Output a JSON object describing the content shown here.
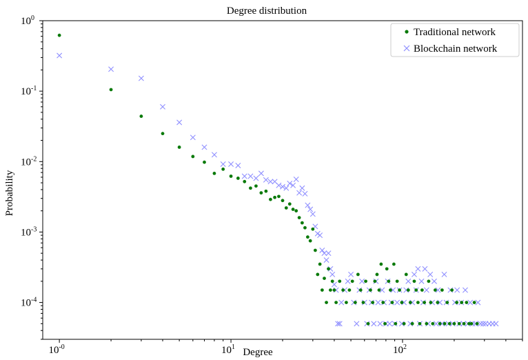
{
  "chart_data": {
    "type": "scatter",
    "title": "Degree distribution",
    "xlabel": "Degree",
    "ylabel": "Probability",
    "xscale": "log",
    "yscale": "log",
    "xlim": [
      0.8,
      500
    ],
    "ylim": [
      3e-05,
      1.0
    ],
    "grid": false,
    "legend_position": "top-right",
    "x_ticks": [
      {
        "value": 1,
        "base": "10",
        "exp": "-0"
      },
      {
        "value": 10,
        "base": "10",
        "exp": "1"
      },
      {
        "value": 100,
        "base": "10",
        "exp": "2"
      }
    ],
    "y_ticks": [
      {
        "value": 1,
        "base": "10",
        "exp": "0"
      },
      {
        "value": 0.1,
        "base": "10",
        "exp": "-1"
      },
      {
        "value": 0.01,
        "base": "10",
        "exp": "-2"
      },
      {
        "value": 0.001,
        "base": "10",
        "exp": "-3"
      },
      {
        "value": 0.0001,
        "base": "10",
        "exp": "-4"
      }
    ],
    "series": [
      {
        "name": "Traditional network",
        "marker": "dot",
        "color": "#0a7a0a",
        "points": [
          [
            1,
            0.62
          ],
          [
            2,
            0.105
          ],
          [
            3,
            0.044
          ],
          [
            4,
            0.025
          ],
          [
            5,
            0.016
          ],
          [
            6,
            0.0118
          ],
          [
            7,
            0.0098
          ],
          [
            8,
            0.0068
          ],
          [
            9,
            0.0078
          ],
          [
            10,
            0.0062
          ],
          [
            11,
            0.0058
          ],
          [
            12,
            0.0052
          ],
          [
            13,
            0.0042
          ],
          [
            14,
            0.0045
          ],
          [
            15,
            0.0036
          ],
          [
            16,
            0.0038
          ],
          [
            17,
            0.0029
          ],
          [
            18,
            0.0031
          ],
          [
            19,
            0.0032
          ],
          [
            20,
            0.0028
          ],
          [
            21,
            0.0022
          ],
          [
            22,
            0.0025
          ],
          [
            23,
            0.0021
          ],
          [
            24,
            0.002
          ],
          [
            25,
            0.0016
          ],
          [
            26,
            0.00135
          ],
          [
            27,
            0.00115
          ],
          [
            28,
            0.00085
          ],
          [
            29,
            0.00075
          ],
          [
            30,
            0.0011
          ],
          [
            31,
            0.00055
          ],
          [
            32,
            0.00025
          ],
          [
            33,
            0.00035
          ],
          [
            34,
            0.00015
          ],
          [
            35,
            0.00022
          ],
          [
            36,
            0.0001
          ],
          [
            37,
            0.0003
          ],
          [
            38,
            0.00015
          ],
          [
            39,
            0.0002
          ],
          [
            40,
            0.00015
          ],
          [
            41,
            0.0001
          ],
          [
            43,
            0.0002
          ],
          [
            45,
            0.00015
          ],
          [
            47,
            0.0001
          ],
          [
            49,
            0.00015
          ],
          [
            51,
            0.0002
          ],
          [
            53,
            0.0001
          ],
          [
            55,
            0.00025
          ],
          [
            57,
            0.00015
          ],
          [
            59,
            0.0001
          ],
          [
            61,
            0.0002
          ],
          [
            63,
            5e-05
          ],
          [
            65,
            0.00015
          ],
          [
            67,
            0.0001
          ],
          [
            69,
            0.0002
          ],
          [
            71,
            0.00025
          ],
          [
            73,
            0.00015
          ],
          [
            75,
            0.00035
          ],
          [
            77,
            0.0001
          ],
          [
            79,
            5e-05
          ],
          [
            81,
            0.0003
          ],
          [
            83,
            0.0002
          ],
          [
            85,
            0.00015
          ],
          [
            87,
            0.0001
          ],
          [
            89,
            0.00035
          ],
          [
            91,
            5e-05
          ],
          [
            93,
            0.0002
          ],
          [
            96,
            0.00015
          ],
          [
            99,
            0.0001
          ],
          [
            102,
            5e-05
          ],
          [
            105,
            0.00025
          ],
          [
            108,
            0.00015
          ],
          [
            111,
            0.0001
          ],
          [
            114,
            5e-05
          ],
          [
            117,
            0.0002
          ],
          [
            120,
            0.00015
          ],
          [
            123,
            0.0001
          ],
          [
            126,
            5e-05
          ],
          [
            130,
            0.00015
          ],
          [
            134,
            0.0001
          ],
          [
            138,
            5e-05
          ],
          [
            142,
            0.0002
          ],
          [
            146,
            0.0001
          ],
          [
            150,
            5e-05
          ],
          [
            155,
            0.00015
          ],
          [
            160,
            0.0001
          ],
          [
            165,
            5e-05
          ],
          [
            170,
            0.00015
          ],
          [
            176,
            5e-05
          ],
          [
            182,
            0.0001
          ],
          [
            188,
            5e-05
          ],
          [
            194,
            0.00015
          ],
          [
            200,
            5e-05
          ],
          [
            207,
            0.0001
          ],
          [
            214,
            5e-05
          ],
          [
            221,
            0.0001
          ],
          [
            228,
            5e-05
          ],
          [
            236,
            0.0001
          ],
          [
            244,
            5e-05
          ],
          [
            252,
            5e-05
          ],
          [
            262,
            0.0001
          ],
          [
            272,
            5e-05
          ]
        ]
      },
      {
        "name": "Blockchain network",
        "marker": "x",
        "color": "#8f8fff",
        "points": [
          [
            1,
            0.32
          ],
          [
            2,
            0.205
          ],
          [
            3,
            0.152
          ],
          [
            4,
            0.06
          ],
          [
            5,
            0.036
          ],
          [
            6,
            0.022
          ],
          [
            7,
            0.016
          ],
          [
            8,
            0.0125
          ],
          [
            9,
            0.0092
          ],
          [
            10,
            0.0092
          ],
          [
            11,
            0.0088
          ],
          [
            12,
            0.0062
          ],
          [
            13,
            0.0062
          ],
          [
            14,
            0.0058
          ],
          [
            15,
            0.0068
          ],
          [
            16,
            0.0055
          ],
          [
            17,
            0.0052
          ],
          [
            18,
            0.0052
          ],
          [
            19,
            0.0046
          ],
          [
            20,
            0.0044
          ],
          [
            21,
            0.0042
          ],
          [
            22,
            0.0049
          ],
          [
            23,
            0.0046
          ],
          [
            24,
            0.0056
          ],
          [
            25,
            0.0036
          ],
          [
            26,
            0.0042
          ],
          [
            27,
            0.0035
          ],
          [
            28,
            0.0024
          ],
          [
            29,
            0.0021
          ],
          [
            30,
            0.0018
          ],
          [
            31,
            0.0012
          ],
          [
            32,
            0.00095
          ],
          [
            33,
            0.0009
          ],
          [
            34,
            0.00055
          ],
          [
            35,
            0.0005
          ],
          [
            36,
            0.0004
          ],
          [
            37,
            0.0005
          ],
          [
            38,
            0.0003
          ],
          [
            39,
            0.00025
          ],
          [
            40,
            0.00018
          ],
          [
            41,
            0.00015
          ],
          [
            42,
            5e-05
          ],
          [
            43,
            5e-05
          ],
          [
            44,
            0.0001
          ],
          [
            46,
            0.00015
          ],
          [
            48,
            0.0002
          ],
          [
            50,
            0.00025
          ],
          [
            52,
            0.0001
          ],
          [
            54,
            5e-05
          ],
          [
            56,
            0.00015
          ],
          [
            58,
            0.0002
          ],
          [
            60,
            0.0001
          ],
          [
            62,
            5e-05
          ],
          [
            64,
            0.00015
          ],
          [
            66,
            0.0001
          ],
          [
            68,
            5e-05
          ],
          [
            70,
            0.0002
          ],
          [
            72,
            0.0001
          ],
          [
            74,
            5e-05
          ],
          [
            76,
            0.00015
          ],
          [
            78,
            0.0001
          ],
          [
            80,
            5e-05
          ],
          [
            82,
            0.0002
          ],
          [
            84,
            5e-05
          ],
          [
            86,
            0.0001
          ],
          [
            88,
            0.00015
          ],
          [
            90,
            5e-05
          ],
          [
            93,
            0.0001
          ],
          [
            96,
            0.00015
          ],
          [
            99,
            5e-05
          ],
          [
            102,
            0.0001
          ],
          [
            105,
            0.00015
          ],
          [
            108,
            0.0002
          ],
          [
            111,
            5e-05
          ],
          [
            114,
            0.0001
          ],
          [
            117,
            0.00025
          ],
          [
            120,
            0.00015
          ],
          [
            123,
            0.0003
          ],
          [
            126,
            5e-05
          ],
          [
            129,
            0.0002
          ],
          [
            132,
            0.0001
          ],
          [
            135,
            0.0003
          ],
          [
            138,
            0.00015
          ],
          [
            141,
            5e-05
          ],
          [
            145,
            0.00025
          ],
          [
            149,
            0.0001
          ],
          [
            153,
            0.0002
          ],
          [
            157,
            5e-05
          ],
          [
            161,
            0.00015
          ],
          [
            165,
            0.0001
          ],
          [
            170,
            5e-05
          ],
          [
            175,
            0.00025
          ],
          [
            180,
            0.0001
          ],
          [
            185,
            5e-05
          ],
          [
            190,
            0.00015
          ],
          [
            196,
            5e-05
          ],
          [
            202,
            0.0001
          ],
          [
            208,
            0.00015
          ],
          [
            214,
            5e-05
          ],
          [
            220,
            0.0001
          ],
          [
            226,
            5e-05
          ],
          [
            232,
            0.00015
          ],
          [
            240,
            5e-05
          ],
          [
            248,
            0.0001
          ],
          [
            256,
            5e-05
          ],
          [
            265,
            5e-05
          ],
          [
            275,
            0.0001
          ],
          [
            285,
            5e-05
          ],
          [
            295,
            5e-05
          ],
          [
            305,
            5e-05
          ],
          [
            320,
            5e-05
          ],
          [
            335,
            5e-05
          ],
          [
            350,
            5e-05
          ]
        ]
      }
    ]
  }
}
